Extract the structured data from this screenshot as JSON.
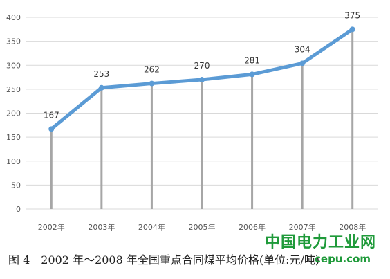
{
  "chart_data": {
    "type": "line",
    "title": "",
    "xlabel": "",
    "ylabel": "",
    "categories": [
      "2002年",
      "2003年",
      "2004年",
      "2005年",
      "2006年",
      "2007年",
      "2008年"
    ],
    "series": [
      {
        "values": [
          167,
          253,
          262,
          270,
          281,
          304,
          375
        ],
        "color": "#5b9bd5"
      }
    ],
    "data_labels": [
      "167",
      "253",
      "262",
      "270",
      "281",
      "304",
      "375"
    ],
    "ylim": [
      0,
      400
    ],
    "yticks": [
      "0",
      "50",
      "100",
      "150",
      "200",
      "250",
      "300",
      "350",
      "400"
    ],
    "grid": "horizontal",
    "drop_lines": true,
    "colors": {
      "line": "#5b9bd5",
      "grid": "#d9d9d9",
      "drop": "#a6a6a6"
    }
  },
  "caption": "图 4　2002 年～2008 年全国重点合同煤平均价格(单位:元/吨)",
  "watermark": {
    "name": "中国电力工业网",
    "url": "cepu.com"
  }
}
